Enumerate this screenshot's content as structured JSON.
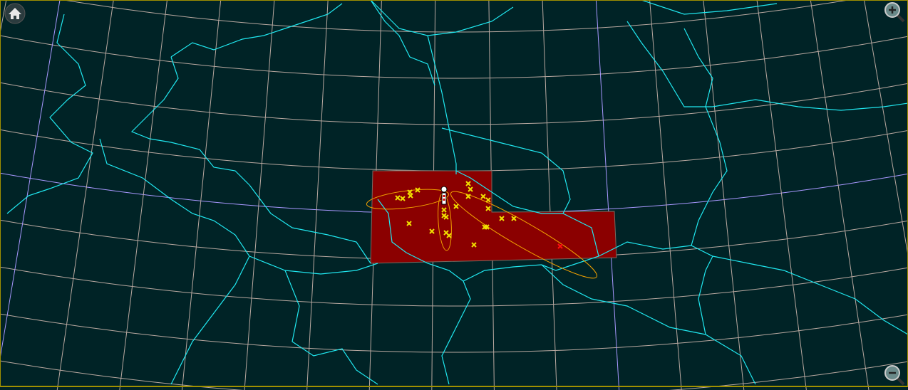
{
  "map": {
    "colors": {
      "background": "#002326",
      "graticule": "#b8a8a0",
      "graticule_highlight": "#a898ff",
      "borders": "#20e8f0",
      "region_fill": "#8b0000",
      "region_stroke": "#7a6a60",
      "marker": "#f0e000",
      "marker_alert": "#ff1010",
      "ellipse": "#f0a000",
      "frame": "#a09000"
    },
    "controls": {
      "home": {
        "icon": "home-icon"
      },
      "zoom_in": {
        "icon": "magnifier-plus-icon"
      },
      "zoom_out": {
        "icon": "magnifier-minus-icon"
      }
    },
    "station": {
      "icon": "station-icon"
    }
  }
}
